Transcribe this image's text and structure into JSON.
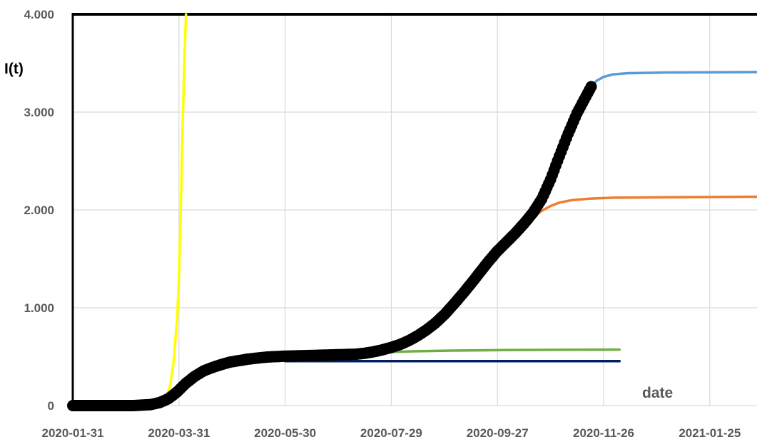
{
  "chart_data": {
    "type": "line",
    "title": "",
    "xlabel": "date",
    "ylabel": "I(t)",
    "x_type": "date",
    "xlim": [
      "2020-01-31",
      "2021-02-24"
    ],
    "ylim": [
      0,
      4000
    ],
    "x_ticks": [
      "2020-01-31",
      "2020-03-31",
      "2020-05-30",
      "2020-07-29",
      "2020-09-27",
      "2020-11-26",
      "2021-01-25"
    ],
    "y_ticks": [
      {
        "value": 0,
        "label": "0"
      },
      {
        "value": 1000,
        "label": "1.000"
      },
      {
        "value": 2000,
        "label": "2.000"
      },
      {
        "value": 3000,
        "label": "3.000"
      },
      {
        "value": 4000,
        "label": "4.000"
      }
    ],
    "grid": {
      "vertical": true,
      "horizontal": true
    },
    "legend": "none",
    "series": [
      {
        "style": "markers",
        "color": "#000000",
        "points": [
          {
            "x": "2020-01-31",
            "y": 0
          },
          {
            "x": "2020-02-20",
            "y": 0
          },
          {
            "x": "2020-03-05",
            "y": 0
          },
          {
            "x": "2020-03-15",
            "y": 10
          },
          {
            "x": "2020-03-20",
            "y": 30
          },
          {
            "x": "2020-03-25",
            "y": 70
          },
          {
            "x": "2020-03-30",
            "y": 140
          },
          {
            "x": "2020-04-04",
            "y": 230
          },
          {
            "x": "2020-04-09",
            "y": 300
          },
          {
            "x": "2020-04-14",
            "y": 355
          },
          {
            "x": "2020-04-19",
            "y": 390
          },
          {
            "x": "2020-04-24",
            "y": 420
          },
          {
            "x": "2020-04-29",
            "y": 445
          },
          {
            "x": "2020-05-04",
            "y": 460
          },
          {
            "x": "2020-05-09",
            "y": 475
          },
          {
            "x": "2020-05-14",
            "y": 485
          },
          {
            "x": "2020-05-19",
            "y": 495
          },
          {
            "x": "2020-05-24",
            "y": 500
          },
          {
            "x": "2020-05-30",
            "y": 505
          },
          {
            "x": "2020-06-09",
            "y": 510
          },
          {
            "x": "2020-06-19",
            "y": 515
          },
          {
            "x": "2020-06-29",
            "y": 520
          },
          {
            "x": "2020-07-09",
            "y": 525
          },
          {
            "x": "2020-07-14",
            "y": 535
          },
          {
            "x": "2020-07-19",
            "y": 550
          },
          {
            "x": "2020-07-24",
            "y": 570
          },
          {
            "x": "2020-07-29",
            "y": 595
          },
          {
            "x": "2020-08-03",
            "y": 625
          },
          {
            "x": "2020-08-08",
            "y": 665
          },
          {
            "x": "2020-08-13",
            "y": 715
          },
          {
            "x": "2020-08-18",
            "y": 775
          },
          {
            "x": "2020-08-23",
            "y": 845
          },
          {
            "x": "2020-08-28",
            "y": 930
          },
          {
            "x": "2020-09-02",
            "y": 1030
          },
          {
            "x": "2020-09-07",
            "y": 1135
          },
          {
            "x": "2020-09-12",
            "y": 1245
          },
          {
            "x": "2020-09-17",
            "y": 1360
          },
          {
            "x": "2020-09-22",
            "y": 1475
          },
          {
            "x": "2020-09-27",
            "y": 1580
          },
          {
            "x": "2020-10-02",
            "y": 1670
          },
          {
            "x": "2020-10-07",
            "y": 1760
          },
          {
            "x": "2020-10-12",
            "y": 1860
          },
          {
            "x": "2020-10-17",
            "y": 1970
          },
          {
            "x": "2020-10-22",
            "y": 2110
          },
          {
            "x": "2020-10-27",
            "y": 2310
          },
          {
            "x": "2020-11-01",
            "y": 2550
          },
          {
            "x": "2020-11-06",
            "y": 2780
          },
          {
            "x": "2020-11-11",
            "y": 2990
          },
          {
            "x": "2020-11-16",
            "y": 3160
          },
          {
            "x": "2020-11-19",
            "y": 3260
          }
        ]
      },
      {
        "style": "line",
        "color": "#ffff00",
        "points": [
          {
            "x": "2020-03-18",
            "y": 0
          },
          {
            "x": "2020-03-21",
            "y": 30
          },
          {
            "x": "2020-03-24",
            "y": 90
          },
          {
            "x": "2020-03-26",
            "y": 200
          },
          {
            "x": "2020-03-28",
            "y": 450
          },
          {
            "x": "2020-03-30",
            "y": 900
          },
          {
            "x": "2020-03-31",
            "y": 1300
          },
          {
            "x": "2020-04-01",
            "y": 2000
          },
          {
            "x": "2020-04-02",
            "y": 2800
          },
          {
            "x": "2020-04-03",
            "y": 3500
          },
          {
            "x": "2020-04-04",
            "y": 4000
          }
        ]
      },
      {
        "style": "line",
        "color": "#002060",
        "points": [
          {
            "x": "2020-05-30",
            "y": 455
          },
          {
            "x": "2020-12-05",
            "y": 455
          }
        ]
      },
      {
        "style": "line",
        "color": "#70ad47",
        "points": [
          {
            "x": "2020-07-25",
            "y": 545
          },
          {
            "x": "2020-08-10",
            "y": 555
          },
          {
            "x": "2020-09-01",
            "y": 562
          },
          {
            "x": "2020-10-01",
            "y": 567
          },
          {
            "x": "2020-11-01",
            "y": 570
          },
          {
            "x": "2020-12-05",
            "y": 572
          }
        ]
      },
      {
        "style": "line",
        "color": "#ed7d31",
        "points": [
          {
            "x": "2020-10-17",
            "y": 1920
          },
          {
            "x": "2020-10-22",
            "y": 1990
          },
          {
            "x": "2020-10-27",
            "y": 2040
          },
          {
            "x": "2020-11-01",
            "y": 2075
          },
          {
            "x": "2020-11-08",
            "y": 2100
          },
          {
            "x": "2020-11-18",
            "y": 2115
          },
          {
            "x": "2020-12-01",
            "y": 2125
          },
          {
            "x": "2021-01-01",
            "y": 2130
          },
          {
            "x": "2021-02-24",
            "y": 2135
          }
        ]
      },
      {
        "style": "line",
        "color": "#5b9bd5",
        "points": [
          {
            "x": "2020-11-19",
            "y": 3260
          },
          {
            "x": "2020-11-22",
            "y": 3320
          },
          {
            "x": "2020-11-26",
            "y": 3360
          },
          {
            "x": "2020-12-01",
            "y": 3385
          },
          {
            "x": "2020-12-10",
            "y": 3398
          },
          {
            "x": "2021-01-01",
            "y": 3405
          },
          {
            "x": "2021-02-24",
            "y": 3410
          }
        ]
      }
    ]
  }
}
